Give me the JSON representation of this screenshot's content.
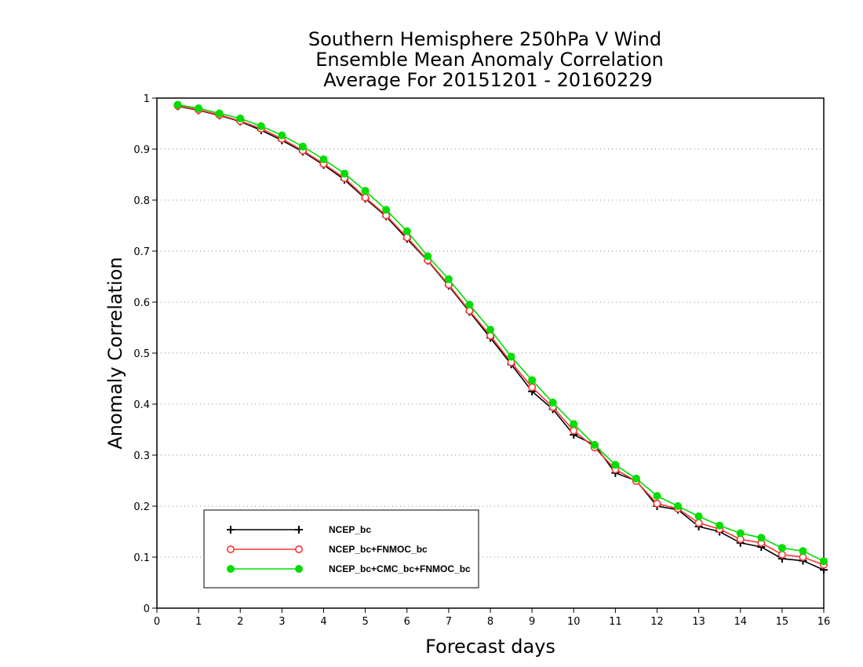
{
  "chart_data": {
    "type": "line",
    "title_lines": [
      "Southern Hemisphere 250hPa V Wind",
      "Ensemble Mean Anomaly Correlation",
      "Average For 20151201 - 20160229"
    ],
    "xlabel": "Forecast days",
    "ylabel": "Anomaly Correlation",
    "xlim": [
      0,
      16
    ],
    "ylim": [
      0,
      1
    ],
    "x_ticks": [
      "0",
      "1",
      "2",
      "3",
      "4",
      "5",
      "6",
      "7",
      "8",
      "9",
      "10",
      "11",
      "12",
      "13",
      "14",
      "15",
      "16"
    ],
    "y_ticks": [
      "0",
      "0.1",
      "0.2",
      "0.3",
      "0.4",
      "0.5",
      "0.6",
      "0.7",
      "0.8",
      "0.9",
      "1"
    ],
    "grid": "dotted horizontal",
    "legend_position": "bottom-left",
    "x": [
      0.5,
      1,
      1.5,
      2,
      2.5,
      3,
      3.5,
      4,
      4.5,
      5,
      5.5,
      6,
      6.5,
      7,
      7.5,
      8,
      8.5,
      9,
      9.5,
      10,
      10.5,
      11,
      11.5,
      12,
      12.5,
      13,
      13.5,
      14,
      14.5,
      15,
      15.5,
      16
    ],
    "series": [
      {
        "name": "NCEP_bc",
        "color": "#000000",
        "marker": "plus",
        "values": [
          0.984,
          0.976,
          0.966,
          0.954,
          0.937,
          0.917,
          0.895,
          0.869,
          0.84,
          0.803,
          0.768,
          0.724,
          0.681,
          0.632,
          0.581,
          0.53,
          0.478,
          0.425,
          0.39,
          0.34,
          0.32,
          0.265,
          0.25,
          0.2,
          0.193,
          0.16,
          0.15,
          0.128,
          0.12,
          0.097,
          0.093,
          0.075
        ]
      },
      {
        "name": "NCEP_bc+FNMOC_bc",
        "color": "#ff3333",
        "marker": "open-circle",
        "values": [
          0.985,
          0.977,
          0.967,
          0.955,
          0.94,
          0.92,
          0.897,
          0.871,
          0.843,
          0.805,
          0.77,
          0.727,
          0.682,
          0.634,
          0.583,
          0.534,
          0.482,
          0.433,
          0.394,
          0.348,
          0.315,
          0.272,
          0.249,
          0.205,
          0.195,
          0.167,
          0.155,
          0.135,
          0.128,
          0.105,
          0.1,
          0.085
        ]
      },
      {
        "name": "NCEP_bc+CMC_bc+FNMOC_bc",
        "color": "#00dd00",
        "marker": "filled-circle",
        "values": [
          0.987,
          0.98,
          0.97,
          0.96,
          0.945,
          0.927,
          0.905,
          0.88,
          0.852,
          0.818,
          0.781,
          0.739,
          0.69,
          0.645,
          0.595,
          0.546,
          0.493,
          0.447,
          0.403,
          0.361,
          0.32,
          0.281,
          0.254,
          0.22,
          0.2,
          0.18,
          0.162,
          0.147,
          0.138,
          0.118,
          0.112,
          0.092
        ]
      }
    ]
  }
}
